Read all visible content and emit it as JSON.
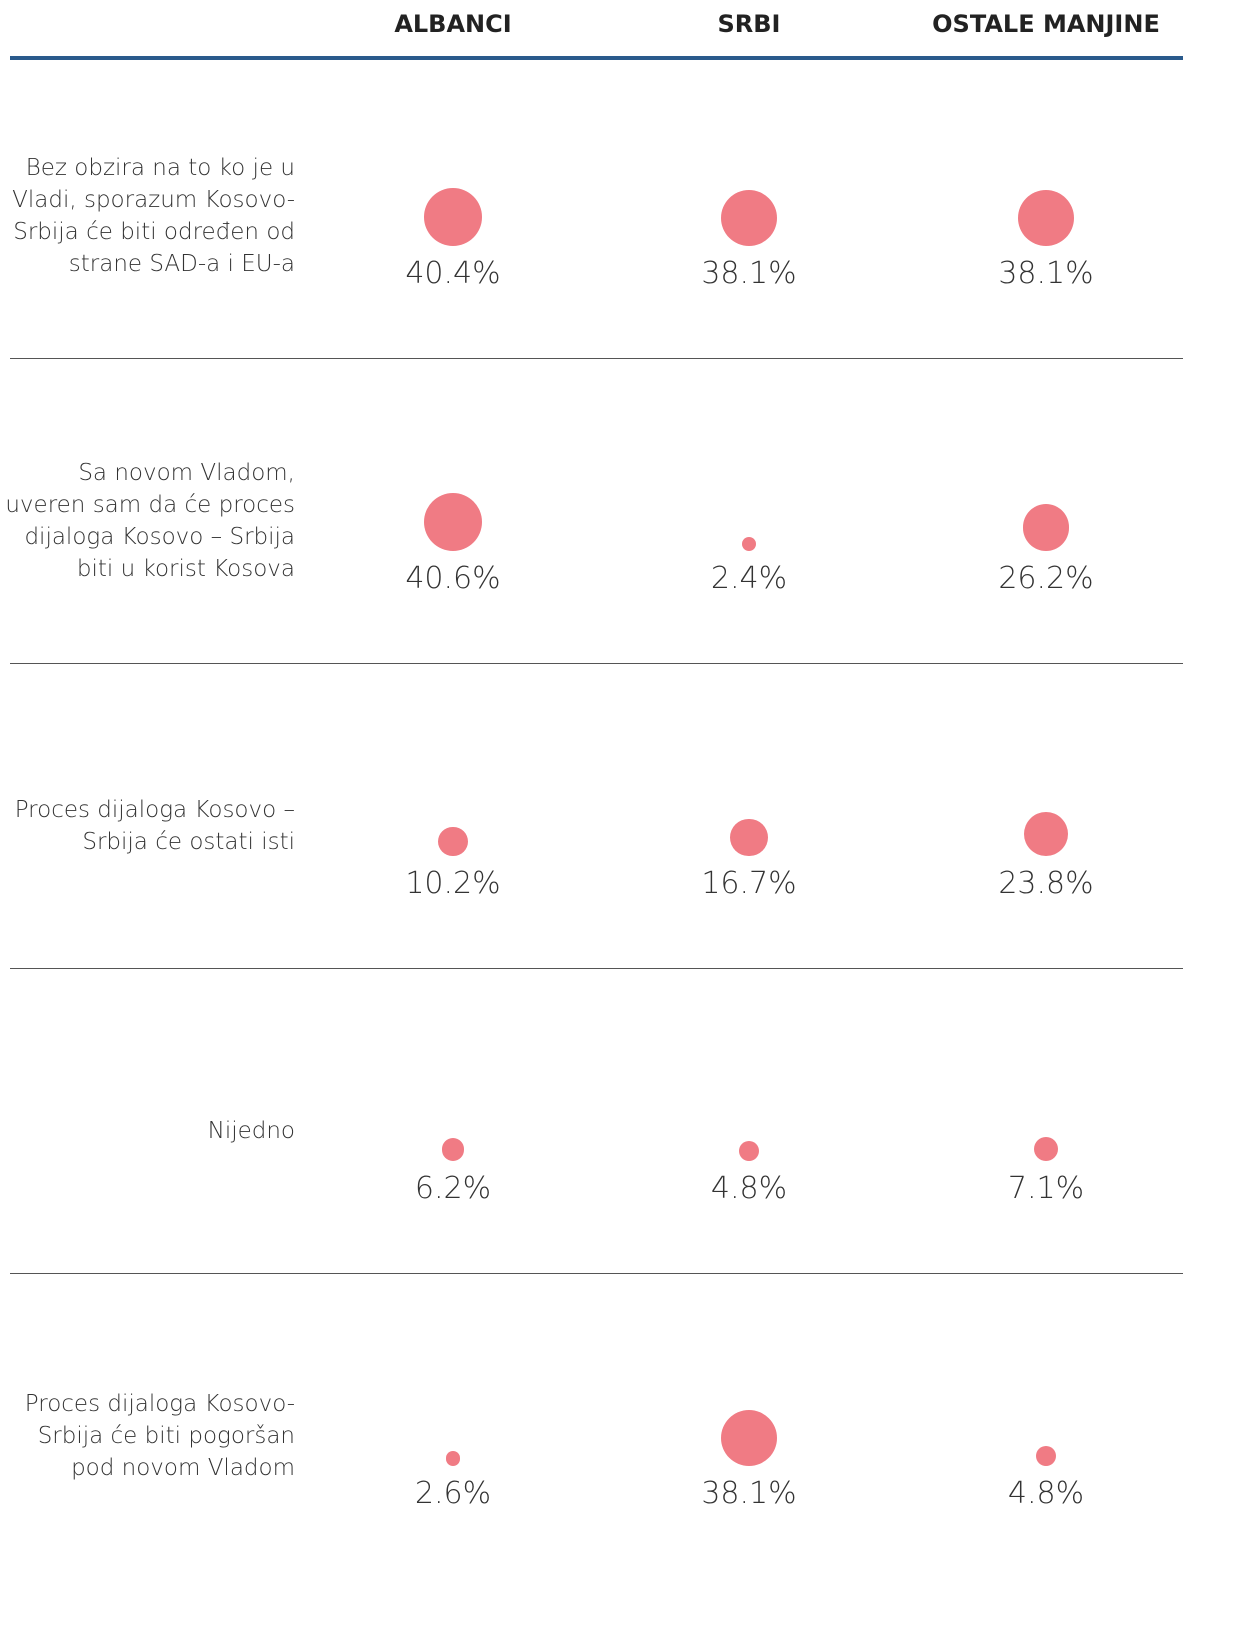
{
  "chart_data": {
    "type": "bubble_matrix",
    "categories": [
      "Bez obzira na to ko je u Vladi, sporazum Kosovo-Srbija će biti određen od strane SAD-a i EU-a",
      "Sa novom Vladom, uveren sam da će proces dijaloga Kosovo – Srbija biti u korist Kosova",
      "Proces dijaloga Kosovo – Srbija će ostati isti",
      "Nijedno",
      "Proces dijaloga Kosovo-Srbija će biti pogoršan pod novom Vladom"
    ],
    "series": [
      {
        "name": "ALBANCI",
        "color": "#f07b84",
        "values": [
          40.4,
          40.6,
          10.2,
          6.2,
          2.6
        ],
        "value_labels": [
          "40.4%",
          "40.6%",
          "10.2%",
          "6.2%",
          "2.6%"
        ]
      },
      {
        "name": "SRBI",
        "color": "#f07b84",
        "values": [
          38.1,
          2.4,
          16.7,
          4.8,
          38.1
        ],
        "value_labels": [
          "38.1%",
          "2.4%",
          "16.7%",
          "4.8%",
          "38.1%"
        ]
      },
      {
        "name": "OSTALE MANJINE",
        "color": "#f07b84",
        "values": [
          38.1,
          26.2,
          23.8,
          7.1,
          4.8
        ],
        "value_labels": [
          "38.1%",
          "26.2%",
          "23.8%",
          "7.1%",
          "4.8%"
        ]
      }
    ]
  }
}
